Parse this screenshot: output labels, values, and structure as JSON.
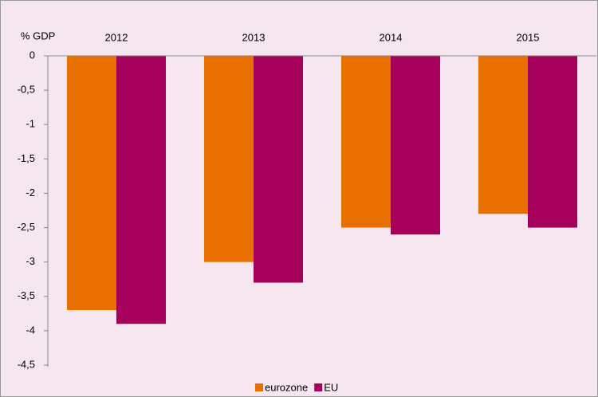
{
  "chart_data": {
    "type": "bar",
    "y_label": "% GDP",
    "categories": [
      "2012",
      "2013",
      "2014",
      "2015"
    ],
    "series": [
      {
        "name": "eurozone",
        "color": "#e87000",
        "values": [
          -3.7,
          -3.0,
          -2.5,
          -2.3
        ]
      },
      {
        "name": "EU",
        "color": "#a5005a",
        "values": [
          -3.9,
          -3.3,
          -2.6,
          -2.5
        ]
      }
    ],
    "ylim": [
      -4.5,
      0
    ],
    "yticks": [
      0,
      {
        "value": -0.5,
        "label": "-0,5"
      },
      -1,
      {
        "value": -1.5,
        "label": "-1,5"
      },
      -2,
      {
        "value": -2.5,
        "label": "-2,5"
      },
      -3,
      {
        "value": -3.5,
        "label": "-3,5"
      },
      -4,
      {
        "value": -4.5,
        "label": "-4,5"
      }
    ],
    "legend": "bottom"
  }
}
